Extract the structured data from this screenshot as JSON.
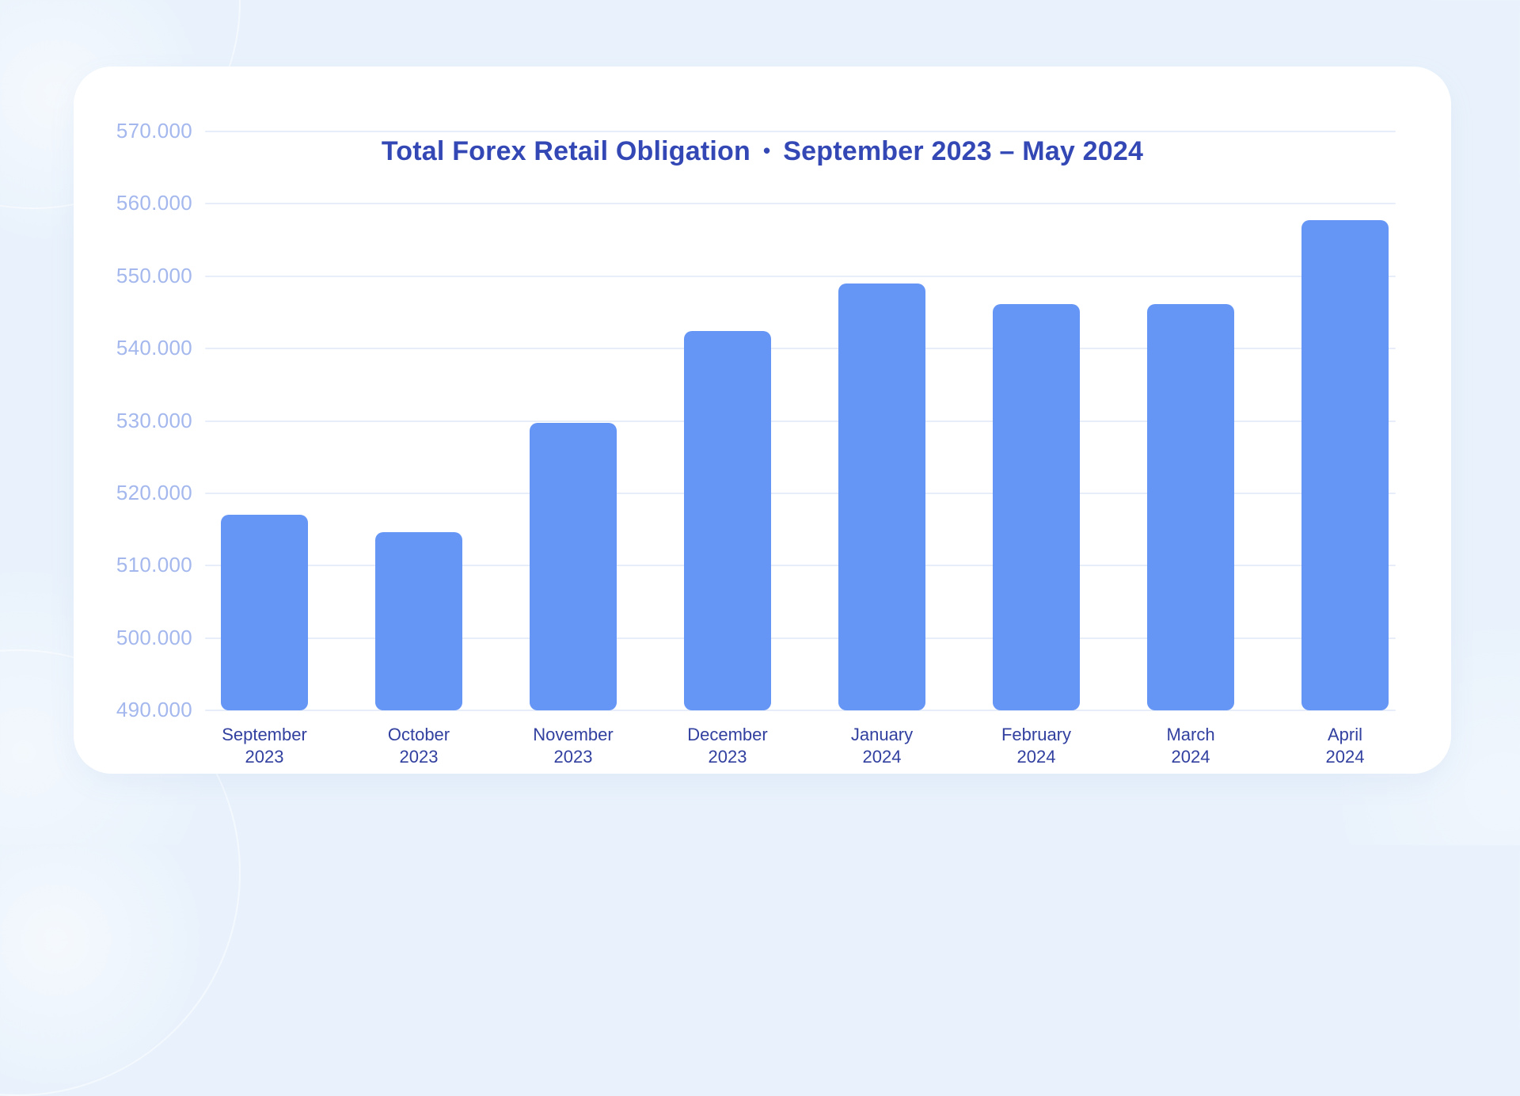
{
  "page": {
    "background_color": "#e9f2fc",
    "card_color": "#ffffff"
  },
  "title": {
    "main": "Total Forex Retail Obligation",
    "separator": "•",
    "period": "September 2023 – May 2024"
  },
  "chart_data": {
    "type": "bar",
    "title": "Total Forex Retail Obligation • September 2023 – May 2024",
    "categories": [
      "September 2023",
      "October 2023",
      "November 2023",
      "December 2023",
      "January 2024",
      "February 2024",
      "March 2024",
      "April 2024"
    ],
    "category_lines": [
      [
        "September",
        "2023"
      ],
      [
        "October",
        "2023"
      ],
      [
        "November",
        "2023"
      ],
      [
        "December",
        "2023"
      ],
      [
        "January",
        "2024"
      ],
      [
        "February",
        "2024"
      ],
      [
        "March",
        "2024"
      ],
      [
        "April",
        "2024"
      ]
    ],
    "values": [
      517000,
      514600,
      529700,
      542400,
      549000,
      546200,
      546200,
      557700
    ],
    "xlabel": "",
    "ylabel": "",
    "ylim": [
      490000,
      570000
    ],
    "ytick_step": 10000,
    "ytick_labels_top_to_bottom": [
      "570.000",
      "560.000",
      "550.000",
      "540.000",
      "530.000",
      "520.000",
      "510.000",
      "500.000",
      "490.000"
    ],
    "grid": true,
    "legend": "none",
    "colors": {
      "bar": "#6696f5",
      "title": "#3348b5",
      "x_tick": "#32409f",
      "y_tick": "#a4b8ee",
      "gridline": "#e7eefa"
    }
  }
}
